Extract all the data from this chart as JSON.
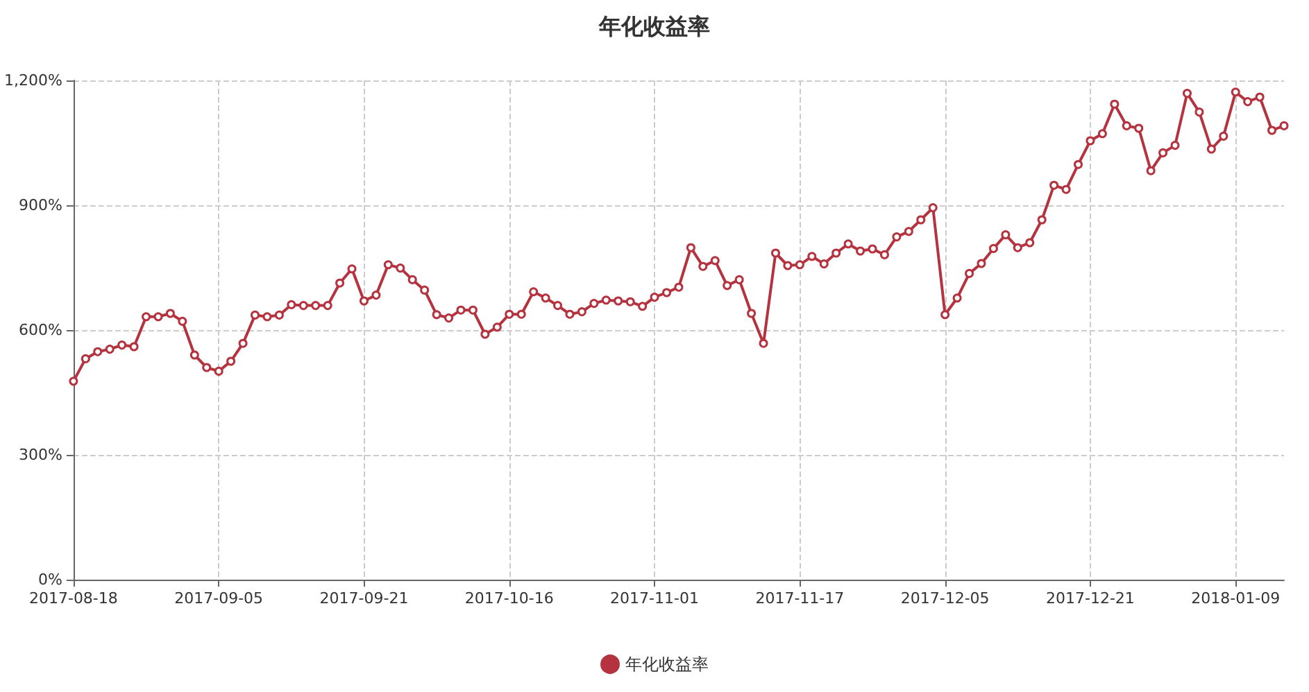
{
  "chart_data": {
    "type": "line",
    "title": "年化收益率",
    "categories": [
      "2017-08-18",
      null,
      null,
      null,
      null,
      null,
      null,
      null,
      null,
      null,
      null,
      null,
      "2017-09-05",
      null,
      null,
      null,
      null,
      null,
      null,
      null,
      null,
      null,
      null,
      null,
      "2017-09-21",
      null,
      null,
      null,
      null,
      null,
      null,
      null,
      null,
      null,
      null,
      null,
      "2017-10-16",
      null,
      null,
      null,
      null,
      null,
      null,
      null,
      null,
      null,
      null,
      null,
      "2017-11-01",
      null,
      null,
      null,
      null,
      null,
      null,
      null,
      null,
      null,
      null,
      null,
      "2017-11-17",
      null,
      null,
      null,
      null,
      null,
      null,
      null,
      null,
      null,
      null,
      null,
      "2017-12-05",
      null,
      null,
      null,
      null,
      null,
      null,
      null,
      null,
      null,
      null,
      null,
      "2017-12-21",
      null,
      null,
      null,
      null,
      null,
      null,
      null,
      null,
      null,
      null,
      null,
      "2018-01-09",
      null,
      null,
      null,
      null
    ],
    "series": [
      {
        "name": "年化收益率",
        "color": "#b5333f",
        "values": [
          477,
          531,
          548,
          554,
          564,
          560,
          632,
          632,
          640,
          621,
          540,
          510,
          501,
          525,
          568,
          636,
          632,
          636,
          661,
          659,
          659,
          659,
          713,
          747,
          670,
          684,
          757,
          749,
          721,
          696,
          637,
          629,
          648,
          648,
          590,
          607,
          638,
          638,
          692,
          677,
          659,
          638,
          644,
          664,
          672,
          670,
          668,
          657,
          679,
          690,
          703,
          798,
          753,
          767,
          707,
          721,
          640,
          568,
          785,
          755,
          757,
          777,
          759,
          785,
          807,
          790,
          795,
          781,
          824,
          837,
          865,
          894,
          637,
          677,
          736,
          760,
          796,
          829,
          798,
          810,
          865,
          948,
          938,
          998,
          1055,
          1072,
          1143,
          1091,
          1085,
          983,
          1026,
          1044,
          1169,
          1124,
          1035,
          1066,
          1172,
          1149,
          1160,
          1080,
          1091
        ]
      }
    ],
    "ylim": [
      0,
      1200
    ],
    "yticks": [
      {
        "value": 0,
        "label": "0%"
      },
      {
        "value": 300,
        "label": "300%"
      },
      {
        "value": 600,
        "label": "600%"
      },
      {
        "value": 900,
        "label": "900%"
      },
      {
        "value": 1200,
        "label": "1,200%"
      }
    ],
    "grid": true,
    "legend": "bottom",
    "marker": "circle",
    "line_style": "solid"
  }
}
